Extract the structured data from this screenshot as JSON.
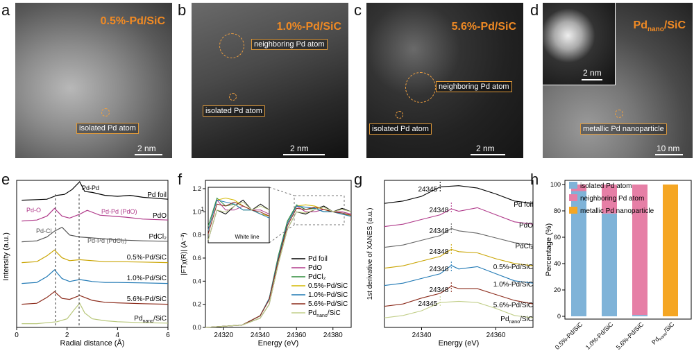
{
  "panel_labels": [
    "a",
    "b",
    "c",
    "d",
    "e",
    "f",
    "g",
    "h"
  ],
  "images": {
    "a": {
      "title": "0.5%-Pd/SiC",
      "annotations": [
        "isolated Pd atom"
      ],
      "scale": "2 nm"
    },
    "b": {
      "title": "1.0%-Pd/SiC",
      "annotations": [
        "neighboring Pd atom",
        "isolated Pd atom"
      ],
      "scale": "2 nm"
    },
    "c": {
      "title": "5.6%-Pd/SiC",
      "annotations": [
        "neighboring Pd atom",
        "isolated Pd atom"
      ],
      "scale": "2 nm"
    },
    "d": {
      "title_main": "Pd",
      "title_sub": "nano",
      "title_tail": "/SiC",
      "annotations": [
        "metallic Pd nanoparticle"
      ],
      "scale": "10 nm",
      "inset_scale": "2 nm"
    }
  },
  "chart_data": [
    {
      "id": "e",
      "type": "line",
      "xlabel": "Radial distance (Å)",
      "ylabel": "Intensity (a.u.)",
      "xlim": [
        0,
        6
      ],
      "xticks": [
        "0",
        "2",
        "4",
        "6"
      ],
      "series": [
        {
          "name": "Pd foil",
          "color": "#000000",
          "x": [
            0.2,
            0.8,
            1.2,
            1.6,
            1.9,
            2.2,
            2.5,
            2.7,
            3.0,
            3.5,
            4.0,
            4.5,
            5.0,
            5.5,
            6.0
          ],
          "y": [
            0.05,
            0.08,
            0.1,
            0.3,
            0.35,
            0.6,
            1.0,
            0.5,
            0.45,
            0.3,
            0.25,
            0.3,
            0.2,
            0.15,
            0.1
          ]
        },
        {
          "name": "PdO",
          "color": "#b03a8a",
          "x": [
            0.2,
            0.8,
            1.2,
            1.5,
            1.8,
            2.1,
            2.5,
            2.8,
            3.0,
            3.3,
            3.8,
            4.3,
            5.0,
            6.0
          ],
          "y": [
            0.05,
            0.1,
            0.3,
            0.7,
            0.3,
            0.2,
            0.4,
            0.6,
            0.5,
            0.35,
            0.3,
            0.25,
            0.15,
            0.1
          ]
        },
        {
          "name": "PdCl₂",
          "color": "#555555",
          "x": [
            0.2,
            0.8,
            1.2,
            1.5,
            1.8,
            2.1,
            2.5,
            3.0,
            3.5,
            4.0,
            5.0,
            6.0
          ],
          "y": [
            0.05,
            0.1,
            0.3,
            0.6,
            0.8,
            0.4,
            0.3,
            0.25,
            0.2,
            0.15,
            0.1,
            0.08
          ]
        },
        {
          "name": "0.5%-Pd/SiC",
          "color": "#c9a400",
          "x": [
            0.2,
            0.8,
            1.2,
            1.5,
            1.8,
            2.1,
            2.5,
            3.0,
            3.5,
            4.0,
            5.0,
            6.0
          ],
          "y": [
            0.05,
            0.1,
            0.4,
            0.7,
            0.3,
            0.15,
            0.2,
            0.15,
            0.1,
            0.1,
            0.08,
            0.05
          ]
        },
        {
          "name": "1.0%-Pd/SiC",
          "color": "#1f78b4",
          "x": [
            0.2,
            0.8,
            1.2,
            1.5,
            1.8,
            2.1,
            2.5,
            3.0,
            3.5,
            4.0,
            5.0,
            6.0
          ],
          "y": [
            0.05,
            0.1,
            0.4,
            0.75,
            0.3,
            0.15,
            0.25,
            0.15,
            0.1,
            0.1,
            0.08,
            0.05
          ]
        },
        {
          "name": "5.6%-Pd/SiC",
          "color": "#8b2a1a",
          "x": [
            0.2,
            0.8,
            1.2,
            1.5,
            1.8,
            2.1,
            2.5,
            3.0,
            3.5,
            4.0,
            5.0,
            6.0
          ],
          "y": [
            0.05,
            0.1,
            0.4,
            0.7,
            0.35,
            0.3,
            0.5,
            0.25,
            0.15,
            0.12,
            0.08,
            0.05
          ]
        },
        {
          "name": "Pd/SiC nano",
          "color": "#b8c77a",
          "x": [
            0.2,
            0.8,
            1.2,
            1.6,
            2.0,
            2.3,
            2.5,
            2.7,
            3.0,
            3.5,
            4.0,
            5.0,
            6.0
          ],
          "y": [
            0.05,
            0.05,
            0.1,
            0.15,
            0.3,
            0.8,
            1.1,
            0.6,
            0.3,
            0.2,
            0.15,
            0.1,
            0.08
          ]
        }
      ],
      "annotations": [
        "Pd-Pd",
        "Pd-O",
        "Pd-Pd (PdO)",
        "Pd-Cl",
        "Pd-Pd (PdCl₂)"
      ]
    },
    {
      "id": "f",
      "type": "line",
      "xlabel": "Energy (eV)",
      "ylabel": "|FTχ(R)| (A⁻³)",
      "xlim": [
        24310,
        24390
      ],
      "ylim": [
        0,
        1.2
      ],
      "xticks": [
        "24320",
        "24340",
        "24360",
        "24380"
      ],
      "yticks": [
        "0.0",
        "0.2",
        "0.4",
        "0.6",
        "0.8",
        "1.0",
        "1.2"
      ],
      "inset_label": "White line",
      "inset_yticks": [
        "1"
      ],
      "series": [
        {
          "name": "Pd foil",
          "color": "#000000",
          "x": [
            24310,
            24330,
            24340,
            24345,
            24350,
            24355,
            24360,
            24365,
            24370,
            24375,
            24380,
            24385,
            24390
          ],
          "y": [
            0.0,
            0.02,
            0.08,
            0.2,
            0.55,
            0.85,
            1.0,
            0.98,
            1.02,
            1.05,
            1.0,
            1.03,
            1.0
          ]
        },
        {
          "name": "PdO",
          "color": "#b03a8a",
          "x": [
            24310,
            24330,
            24340,
            24345,
            24350,
            24355,
            24360,
            24365,
            24370,
            24375,
            24380,
            24385,
            24390
          ],
          "y": [
            0.0,
            0.02,
            0.1,
            0.25,
            0.6,
            0.9,
            1.05,
            1.0,
            1.0,
            1.02,
            1.0,
            1.0,
            0.98
          ]
        },
        {
          "name": "PdCl₂",
          "color": "#2e8b3a",
          "x": [
            24310,
            24330,
            24340,
            24345,
            24350,
            24355,
            24360,
            24365,
            24370,
            24375,
            24380,
            24385,
            24390
          ],
          "y": [
            0.0,
            0.02,
            0.1,
            0.25,
            0.62,
            0.92,
            1.06,
            1.02,
            1.03,
            1.0,
            1.0,
            0.98,
            0.97
          ]
        },
        {
          "name": "0.5%-Pd/SiC",
          "color": "#d4b800",
          "x": [
            24310,
            24330,
            24340,
            24345,
            24350,
            24355,
            24360,
            24365,
            24370,
            24375,
            24380,
            24385,
            24390
          ],
          "y": [
            0.0,
            0.02,
            0.1,
            0.25,
            0.6,
            0.9,
            1.05,
            1.06,
            1.05,
            1.02,
            1.0,
            0.98,
            0.97
          ]
        },
        {
          "name": "1.0%-Pd/SiC",
          "color": "#1f78b4",
          "x": [
            24310,
            24330,
            24340,
            24345,
            24350,
            24355,
            24360,
            24365,
            24370,
            24375,
            24380,
            24385,
            24390
          ],
          "y": [
            0.0,
            0.02,
            0.1,
            0.25,
            0.6,
            0.9,
            1.05,
            1.04,
            1.03,
            1.0,
            1.0,
            0.98,
            0.96
          ]
        },
        {
          "name": "5.6%-Pd/SiC",
          "color": "#8b2a1a",
          "x": [
            24310,
            24330,
            24340,
            24345,
            24350,
            24355,
            24360,
            24365,
            24370,
            24375,
            24380,
            24385,
            24390
          ],
          "y": [
            0.0,
            0.02,
            0.1,
            0.24,
            0.58,
            0.88,
            1.03,
            1.02,
            1.04,
            1.02,
            1.0,
            0.99,
            0.97
          ]
        },
        {
          "name": "Pd/SiC nano",
          "color": "#c2cf8a",
          "x": [
            24310,
            24330,
            24340,
            24345,
            24350,
            24355,
            24360,
            24365,
            24370,
            24375,
            24380,
            24385,
            24390
          ],
          "y": [
            0.0,
            0.02,
            0.08,
            0.2,
            0.55,
            0.85,
            1.0,
            0.99,
            1.02,
            1.04,
            1.0,
            1.02,
            1.0
          ]
        }
      ]
    },
    {
      "id": "g",
      "type": "line",
      "xlabel": "Energy (eV)",
      "ylabel": "1st derivative of XANES (a.u.)",
      "xlim": [
        24330,
        24370
      ],
      "xticks": [
        "24340",
        "24360"
      ],
      "edge_labels": [
        "24345",
        "24348",
        "24348",
        "24348",
        "24348",
        "24348",
        "24345"
      ],
      "series": [
        {
          "name": "Pd foil",
          "color": "#000000",
          "x": [
            24330,
            24335,
            24340,
            24345,
            24350,
            24355,
            24360,
            24365,
            24370
          ],
          "y": [
            0.2,
            0.3,
            0.5,
            0.9,
            0.95,
            0.85,
            0.6,
            0.3,
            0.2
          ]
        },
        {
          "name": "PdO",
          "color": "#b03a8a",
          "x": [
            24330,
            24335,
            24340,
            24345,
            24348,
            24350,
            24355,
            24360,
            24365,
            24370
          ],
          "y": [
            0.1,
            0.2,
            0.4,
            0.6,
            0.85,
            0.75,
            0.9,
            0.6,
            0.3,
            0.2
          ]
        },
        {
          "name": "PdCl₂",
          "color": "#666666",
          "x": [
            24330,
            24335,
            24340,
            24345,
            24348,
            24350,
            24355,
            24360,
            24365,
            24370
          ],
          "y": [
            0.1,
            0.2,
            0.4,
            0.6,
            0.9,
            0.8,
            0.7,
            0.5,
            0.3,
            0.2
          ]
        },
        {
          "name": "0.5%-Pd/SiC",
          "color": "#c9a400",
          "x": [
            24330,
            24335,
            24340,
            24345,
            24348,
            24350,
            24355,
            24360,
            24365,
            24370
          ],
          "y": [
            0.1,
            0.2,
            0.4,
            0.6,
            0.9,
            0.8,
            0.75,
            0.5,
            0.3,
            0.2
          ]
        },
        {
          "name": "1.0%-Pd/SiC",
          "color": "#1f78b4",
          "x": [
            24330,
            24335,
            24340,
            24345,
            24348,
            24350,
            24355,
            24360,
            24365,
            24370
          ],
          "y": [
            0.1,
            0.2,
            0.4,
            0.6,
            0.95,
            0.8,
            0.9,
            0.6,
            0.3,
            0.2
          ]
        },
        {
          "name": "5.6%-Pd/SiC",
          "color": "#8b2a1a",
          "x": [
            24330,
            24335,
            24340,
            24345,
            24348,
            24350,
            24355,
            24360,
            24365,
            24370
          ],
          "y": [
            0.1,
            0.2,
            0.45,
            0.65,
            0.95,
            0.85,
            0.85,
            0.6,
            0.35,
            0.2
          ]
        },
        {
          "name": "Pd/SiC nano",
          "color": "#c2cf8a",
          "x": [
            24330,
            24335,
            24340,
            24345,
            24350,
            24355,
            24360,
            24365,
            24370
          ],
          "y": [
            0.2,
            0.3,
            0.5,
            0.85,
            0.9,
            0.85,
            0.6,
            0.3,
            0.2
          ]
        }
      ]
    },
    {
      "id": "h",
      "type": "bar",
      "ylabel": "Percentage (%)",
      "ylim": [
        0,
        100
      ],
      "yticks": [
        "0",
        "20",
        "40",
        "60",
        "80",
        "100"
      ],
      "categories": [
        "0.5%-Pd/SiC",
        "1.0%-Pd/SiC",
        "5.6%-Pd/SiC",
        "Pd/SiC nano"
      ],
      "series": [
        {
          "name": "isolated Pd atom",
          "color": "#7fb3d8",
          "values": [
            95,
            78,
            1,
            0
          ]
        },
        {
          "name": "neighboring Pd atom",
          "color": "#e67fa6",
          "values": [
            5,
            22,
            99,
            0
          ]
        },
        {
          "name": "metallic Pd nanoparticle",
          "color": "#f5a623",
          "values": [
            0,
            0,
            0,
            100
          ]
        }
      ]
    }
  ]
}
